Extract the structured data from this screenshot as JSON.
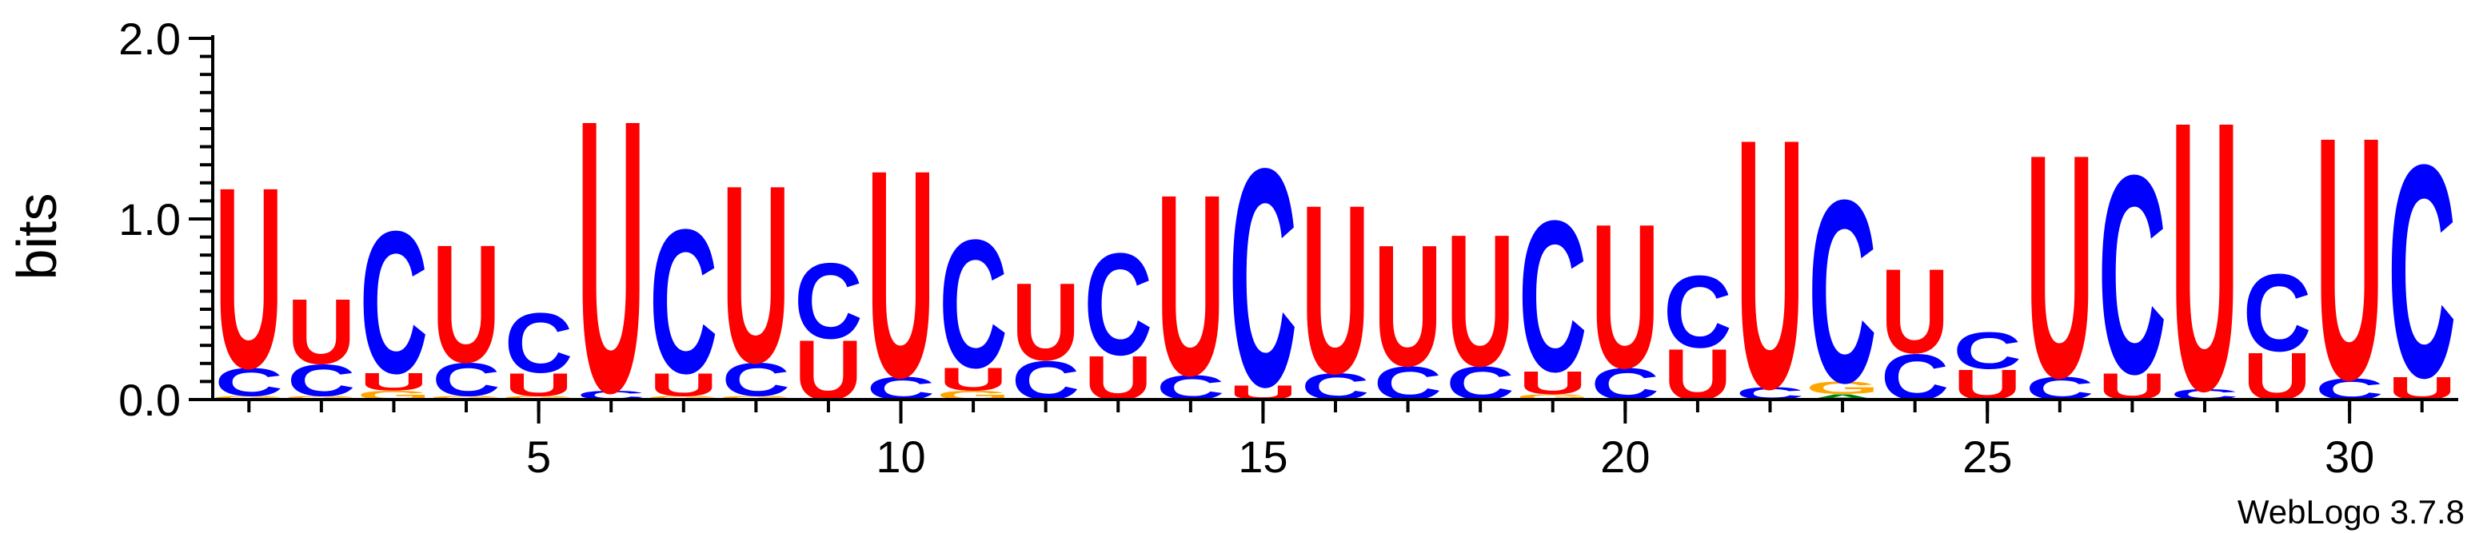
{
  "chart_data": {
    "type": "sequence-logo",
    "ylabel": "bits",
    "ylim": [
      0,
      2.0
    ],
    "y_ticks": [
      "0.0",
      "1.0",
      "2.0"
    ],
    "x_ticks": [
      5,
      10,
      15,
      20,
      25,
      30
    ],
    "credit": "WebLogo 3.7.8",
    "colors": {
      "U": "#ff0000",
      "C": "#0000ff",
      "G": "#ffa500",
      "A": "#008000"
    },
    "positions": [
      {
        "pos": 1,
        "stack": [
          {
            "l": "G",
            "h": 0.02
          },
          {
            "l": "C",
            "h": 0.16
          },
          {
            "l": "U",
            "h": 1.03
          }
        ]
      },
      {
        "pos": 2,
        "stack": [
          {
            "l": "G",
            "h": 0.02
          },
          {
            "l": "C",
            "h": 0.18
          },
          {
            "l": "U",
            "h": 0.37
          }
        ]
      },
      {
        "pos": 3,
        "stack": [
          {
            "l": "G",
            "h": 0.05
          },
          {
            "l": "U",
            "h": 0.1
          },
          {
            "l": "C",
            "h": 0.81
          }
        ]
      },
      {
        "pos": 4,
        "stack": [
          {
            "l": "G",
            "h": 0.02
          },
          {
            "l": "C",
            "h": 0.19
          },
          {
            "l": "U",
            "h": 0.67
          }
        ]
      },
      {
        "pos": 5,
        "stack": [
          {
            "l": "G",
            "h": 0.02
          },
          {
            "l": "U",
            "h": 0.13
          },
          {
            "l": "C",
            "h": 0.34
          }
        ]
      },
      {
        "pos": 6,
        "stack": [
          {
            "l": "C",
            "h": 0.05
          },
          {
            "l": "U",
            "h": 1.55
          }
        ]
      },
      {
        "pos": 7,
        "stack": [
          {
            "l": "G",
            "h": 0.02
          },
          {
            "l": "U",
            "h": 0.13
          },
          {
            "l": "C",
            "h": 0.82
          }
        ]
      },
      {
        "pos": 8,
        "stack": [
          {
            "l": "G",
            "h": 0.02
          },
          {
            "l": "C",
            "h": 0.19
          },
          {
            "l": "U",
            "h": 1.01
          }
        ]
      },
      {
        "pos": 9,
        "stack": [
          {
            "l": "U",
            "h": 0.34
          },
          {
            "l": "C",
            "h": 0.43
          }
        ]
      },
      {
        "pos": 10,
        "stack": [
          {
            "l": "C",
            "h": 0.13
          },
          {
            "l": "U",
            "h": 1.18
          }
        ]
      },
      {
        "pos": 11,
        "stack": [
          {
            "l": "G",
            "h": 0.05
          },
          {
            "l": "U",
            "h": 0.13
          },
          {
            "l": "C",
            "h": 0.73
          }
        ]
      },
      {
        "pos": 12,
        "stack": [
          {
            "l": "C",
            "h": 0.22
          },
          {
            "l": "U",
            "h": 0.44
          }
        ]
      },
      {
        "pos": 13,
        "stack": [
          {
            "l": "U",
            "h": 0.25
          },
          {
            "l": "C",
            "h": 0.58
          }
        ]
      },
      {
        "pos": 14,
        "stack": [
          {
            "l": "C",
            "h": 0.14
          },
          {
            "l": "U",
            "h": 1.03
          }
        ]
      },
      {
        "pos": 15,
        "stack": [
          {
            "l": "U",
            "h": 0.08
          },
          {
            "l": "C",
            "h": 1.24
          }
        ]
      },
      {
        "pos": 16,
        "stack": [
          {
            "l": "C",
            "h": 0.15
          },
          {
            "l": "U",
            "h": 0.96
          }
        ]
      },
      {
        "pos": 17,
        "stack": [
          {
            "l": "C",
            "h": 0.19
          },
          {
            "l": "U",
            "h": 0.69
          }
        ]
      },
      {
        "pos": 18,
        "stack": [
          {
            "l": "C",
            "h": 0.19
          },
          {
            "l": "U",
            "h": 0.75
          }
        ]
      },
      {
        "pos": 19,
        "stack": [
          {
            "l": "G",
            "h": 0.03
          },
          {
            "l": "U",
            "h": 0.13
          },
          {
            "l": "C",
            "h": 0.86
          }
        ]
      },
      {
        "pos": 20,
        "stack": [
          {
            "l": "C",
            "h": 0.18
          },
          {
            "l": "U",
            "h": 0.82
          }
        ]
      },
      {
        "pos": 21,
        "stack": [
          {
            "l": "U",
            "h": 0.29
          },
          {
            "l": "C",
            "h": 0.41
          }
        ]
      },
      {
        "pos": 22,
        "stack": [
          {
            "l": "C",
            "h": 0.07
          },
          {
            "l": "U",
            "h": 1.42
          }
        ]
      },
      {
        "pos": 23,
        "stack": [
          {
            "l": "A",
            "h": 0.03
          },
          {
            "l": "G",
            "h": 0.07
          },
          {
            "l": "C",
            "h": 1.04
          }
        ]
      },
      {
        "pos": 24,
        "stack": [
          {
            "l": "C",
            "h": 0.26
          },
          {
            "l": "U",
            "h": 0.48
          }
        ]
      },
      {
        "pos": 25,
        "stack": [
          {
            "l": "U",
            "h": 0.17
          },
          {
            "l": "C",
            "h": 0.21
          }
        ]
      },
      {
        "pos": 26,
        "stack": [
          {
            "l": "C",
            "h": 0.13
          },
          {
            "l": "U",
            "h": 1.27
          }
        ]
      },
      {
        "pos": 27,
        "stack": [
          {
            "l": "U",
            "h": 0.15
          },
          {
            "l": "C",
            "h": 1.13
          }
        ]
      },
      {
        "pos": 28,
        "stack": [
          {
            "l": "C",
            "h": 0.06
          },
          {
            "l": "U",
            "h": 1.53
          }
        ]
      },
      {
        "pos": 29,
        "stack": [
          {
            "l": "U",
            "h": 0.27
          },
          {
            "l": "C",
            "h": 0.44
          }
        ]
      },
      {
        "pos": 30,
        "stack": [
          {
            "l": "C",
            "h": 0.12
          },
          {
            "l": "U",
            "h": 1.38
          }
        ]
      },
      {
        "pos": 31,
        "stack": [
          {
            "l": "U",
            "h": 0.13
          },
          {
            "l": "C",
            "h": 1.21
          }
        ]
      }
    ]
  }
}
